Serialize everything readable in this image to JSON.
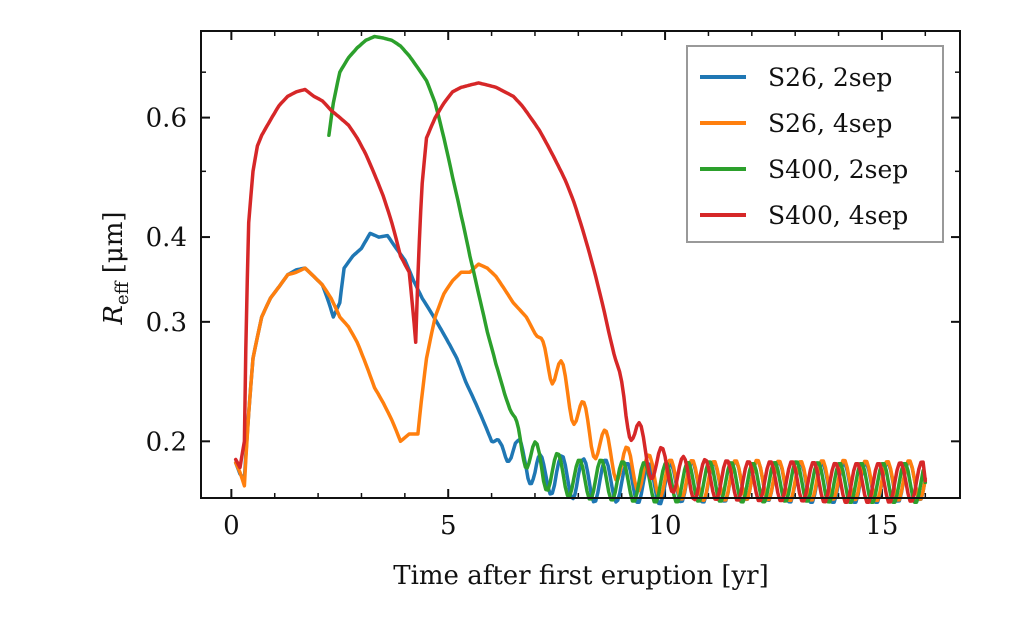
{
  "chart_data": {
    "type": "line",
    "title": "",
    "xlabel": "Time after first eruption [yr]",
    "ylabel": {
      "main": "R",
      "sub": "eff",
      "unit": " [μm]"
    },
    "xlim": [
      -0.7,
      16.8
    ],
    "ylim": [
      0.165,
      0.805
    ],
    "yscale": "log",
    "xticks": [
      0,
      5,
      10,
      15
    ],
    "xtick_labels": [
      "0",
      "5",
      "10",
      "15"
    ],
    "yticks": [
      0.2,
      0.3,
      0.4,
      0.6
    ],
    "ytick_labels": [
      "0.2",
      "0.3",
      "0.4",
      "0.6"
    ],
    "grid": false,
    "legend_position": "upper right",
    "series": [
      {
        "name": "S26, 2sep",
        "color": "#1f77b4",
        "points": [
          [
            0.1,
            0.186
          ],
          [
            0.2,
            0.179
          ],
          [
            0.3,
            0.176
          ],
          [
            0.4,
            0.22
          ],
          [
            0.5,
            0.265
          ],
          [
            0.7,
            0.305
          ],
          [
            0.9,
            0.325
          ],
          [
            1.1,
            0.338
          ],
          [
            1.3,
            0.352
          ],
          [
            1.5,
            0.358
          ],
          [
            1.7,
            0.36
          ],
          [
            1.9,
            0.35
          ],
          [
            2.1,
            0.34
          ],
          [
            2.25,
            0.32
          ],
          [
            2.35,
            0.305
          ],
          [
            2.5,
            0.32
          ],
          [
            2.6,
            0.36
          ],
          [
            2.8,
            0.375
          ],
          [
            3.0,
            0.385
          ],
          [
            3.2,
            0.405
          ],
          [
            3.4,
            0.4
          ],
          [
            3.6,
            0.402
          ],
          [
            3.8,
            0.385
          ],
          [
            4.0,
            0.37
          ],
          [
            4.2,
            0.345
          ],
          [
            4.4,
            0.325
          ],
          [
            4.6,
            0.31
          ],
          [
            4.8,
            0.295
          ],
          [
            5.0,
            0.28
          ],
          [
            5.2,
            0.265
          ],
          [
            5.4,
            0.245
          ],
          [
            5.6,
            0.23
          ],
          [
            5.8,
            0.215
          ],
          [
            6.0,
            0.2
          ],
          [
            6.2,
            0.195
          ],
          [
            6.4,
            0.2
          ],
          [
            6.6,
            0.188
          ],
          [
            6.8,
            0.19
          ],
          [
            7.0,
            0.18
          ],
          [
            7.2,
            0.178
          ],
          [
            7.5,
            0.18
          ],
          [
            7.8,
            0.176
          ],
          [
            8.0,
            0.178
          ],
          [
            8.3,
            0.174
          ],
          [
            8.6,
            0.176
          ],
          [
            9.0,
            0.174
          ],
          [
            9.5,
            0.174
          ],
          [
            10.0,
            0.173
          ],
          [
            10.5,
            0.175
          ],
          [
            11.0,
            0.174
          ],
          [
            12.0,
            0.176
          ],
          [
            13.0,
            0.174
          ],
          [
            14.0,
            0.174
          ],
          [
            15.0,
            0.174
          ],
          [
            16.0,
            0.176
          ]
        ],
        "oscillation": {
          "start": 6.0,
          "period": 0.5,
          "amplitude": 0.012
        }
      },
      {
        "name": "S26, 4sep",
        "color": "#ff7f0e",
        "points": [
          [
            0.1,
            0.186
          ],
          [
            0.2,
            0.18
          ],
          [
            0.3,
            0.172
          ],
          [
            0.4,
            0.22
          ],
          [
            0.5,
            0.265
          ],
          [
            0.7,
            0.305
          ],
          [
            0.9,
            0.325
          ],
          [
            1.1,
            0.338
          ],
          [
            1.3,
            0.352
          ],
          [
            1.5,
            0.355
          ],
          [
            1.7,
            0.36
          ],
          [
            1.9,
            0.35
          ],
          [
            2.1,
            0.34
          ],
          [
            2.3,
            0.325
          ],
          [
            2.5,
            0.305
          ],
          [
            2.7,
            0.295
          ],
          [
            2.9,
            0.28
          ],
          [
            3.1,
            0.26
          ],
          [
            3.3,
            0.24
          ],
          [
            3.5,
            0.228
          ],
          [
            3.7,
            0.215
          ],
          [
            3.9,
            0.2
          ],
          [
            4.1,
            0.205
          ],
          [
            4.3,
            0.205
          ],
          [
            4.5,
            0.265
          ],
          [
            4.7,
            0.305
          ],
          [
            4.9,
            0.33
          ],
          [
            5.1,
            0.345
          ],
          [
            5.3,
            0.355
          ],
          [
            5.5,
            0.355
          ],
          [
            5.7,
            0.365
          ],
          [
            5.9,
            0.36
          ],
          [
            6.1,
            0.35
          ],
          [
            6.3,
            0.335
          ],
          [
            6.5,
            0.32
          ],
          [
            6.8,
            0.305
          ],
          [
            7.1,
            0.28
          ],
          [
            7.4,
            0.26
          ],
          [
            7.7,
            0.24
          ],
          [
            8.0,
            0.22
          ],
          [
            8.3,
            0.205
          ],
          [
            8.6,
            0.195
          ],
          [
            9.0,
            0.185
          ],
          [
            9.5,
            0.18
          ],
          [
            10.0,
            0.176
          ],
          [
            10.5,
            0.176
          ],
          [
            11.0,
            0.175
          ],
          [
            12.0,
            0.176
          ],
          [
            13.0,
            0.175
          ],
          [
            14.0,
            0.176
          ],
          [
            15.0,
            0.175
          ],
          [
            16.0,
            0.176
          ]
        ],
        "oscillation": {
          "start": 7.0,
          "period": 0.5,
          "amplitude": 0.012
        }
      },
      {
        "name": "S400, 2sep",
        "color": "#2ca02c",
        "points": [
          [
            2.25,
            0.565
          ],
          [
            2.35,
            0.63
          ],
          [
            2.5,
            0.7
          ],
          [
            2.7,
            0.735
          ],
          [
            2.9,
            0.76
          ],
          [
            3.1,
            0.78
          ],
          [
            3.3,
            0.79
          ],
          [
            3.5,
            0.786
          ],
          [
            3.7,
            0.78
          ],
          [
            3.9,
            0.765
          ],
          [
            4.1,
            0.74
          ],
          [
            4.3,
            0.71
          ],
          [
            4.5,
            0.68
          ],
          [
            4.7,
            0.63
          ],
          [
            4.9,
            0.56
          ],
          [
            5.1,
            0.49
          ],
          [
            5.3,
            0.43
          ],
          [
            5.5,
            0.375
          ],
          [
            5.7,
            0.33
          ],
          [
            5.9,
            0.29
          ],
          [
            6.1,
            0.26
          ],
          [
            6.3,
            0.235
          ],
          [
            6.5,
            0.215
          ],
          [
            6.7,
            0.2
          ],
          [
            6.9,
            0.19
          ],
          [
            7.2,
            0.182
          ],
          [
            7.5,
            0.18
          ],
          [
            8.0,
            0.176
          ],
          [
            8.5,
            0.176
          ],
          [
            9.0,
            0.175
          ],
          [
            10.0,
            0.174
          ],
          [
            11.0,
            0.175
          ],
          [
            12.0,
            0.174
          ],
          [
            13.0,
            0.175
          ],
          [
            14.0,
            0.174
          ],
          [
            15.0,
            0.174
          ],
          [
            16.0,
            0.174
          ]
        ],
        "oscillation": {
          "start": 6.4,
          "period": 0.5,
          "amplitude": 0.012
        }
      },
      {
        "name": "S400, 4sep",
        "color": "#d62728",
        "points": [
          [
            0.1,
            0.188
          ],
          [
            0.2,
            0.183
          ],
          [
            0.3,
            0.2
          ],
          [
            0.4,
            0.42
          ],
          [
            0.5,
            0.5
          ],
          [
            0.6,
            0.545
          ],
          [
            0.7,
            0.565
          ],
          [
            0.9,
            0.595
          ],
          [
            1.1,
            0.625
          ],
          [
            1.3,
            0.645
          ],
          [
            1.5,
            0.655
          ],
          [
            1.7,
            0.66
          ],
          [
            1.9,
            0.645
          ],
          [
            2.1,
            0.635
          ],
          [
            2.3,
            0.615
          ],
          [
            2.5,
            0.6
          ],
          [
            2.7,
            0.585
          ],
          [
            2.9,
            0.56
          ],
          [
            3.1,
            0.53
          ],
          [
            3.3,
            0.495
          ],
          [
            3.5,
            0.46
          ],
          [
            3.7,
            0.42
          ],
          [
            3.9,
            0.375
          ],
          [
            4.1,
            0.355
          ],
          [
            4.25,
            0.28
          ],
          [
            4.3,
            0.35
          ],
          [
            4.4,
            0.48
          ],
          [
            4.5,
            0.56
          ],
          [
            4.7,
            0.6
          ],
          [
            4.9,
            0.63
          ],
          [
            5.1,
            0.655
          ],
          [
            5.3,
            0.665
          ],
          [
            5.5,
            0.67
          ],
          [
            5.7,
            0.675
          ],
          [
            5.9,
            0.67
          ],
          [
            6.1,
            0.665
          ],
          [
            6.3,
            0.655
          ],
          [
            6.5,
            0.645
          ],
          [
            6.7,
            0.625
          ],
          [
            6.9,
            0.6
          ],
          [
            7.1,
            0.575
          ],
          [
            7.3,
            0.545
          ],
          [
            7.5,
            0.515
          ],
          [
            7.7,
            0.485
          ],
          [
            7.9,
            0.45
          ],
          [
            8.1,
            0.41
          ],
          [
            8.3,
            0.37
          ],
          [
            8.5,
            0.33
          ],
          [
            8.7,
            0.29
          ],
          [
            8.9,
            0.255
          ],
          [
            9.1,
            0.225
          ],
          [
            9.3,
            0.205
          ],
          [
            9.5,
            0.195
          ],
          [
            9.8,
            0.185
          ],
          [
            10.2,
            0.18
          ],
          [
            10.6,
            0.176
          ],
          [
            11.0,
            0.176
          ],
          [
            12.0,
            0.175
          ],
          [
            13.0,
            0.175
          ],
          [
            14.0,
            0.174
          ],
          [
            15.0,
            0.174
          ],
          [
            16.0,
            0.175
          ]
        ],
        "oscillation": {
          "start": 8.8,
          "period": 0.5,
          "amplitude": 0.012
        }
      }
    ]
  }
}
